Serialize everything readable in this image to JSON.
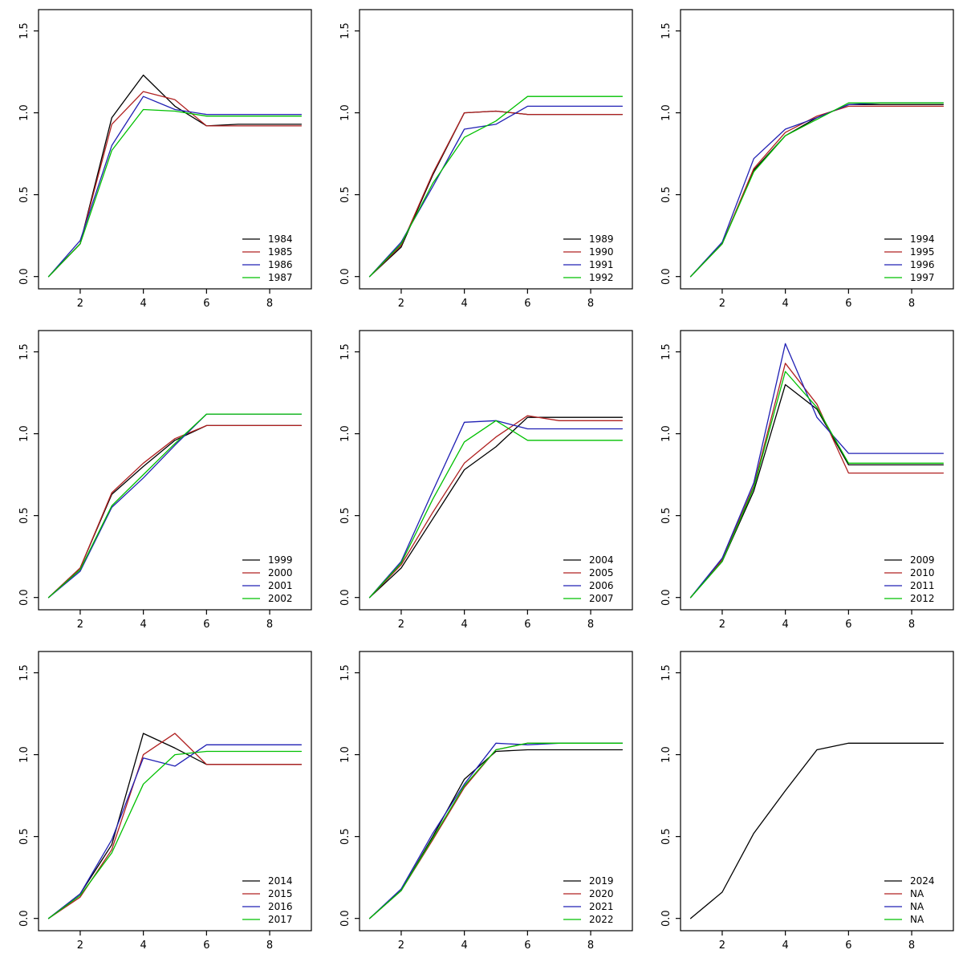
{
  "page": {
    "background": "#ffffff",
    "grid": "3x3 line chart panels"
  },
  "axis": {
    "xlim": [
      1,
      9
    ],
    "ylim": [
      0,
      1.55
    ],
    "x_ticks": [
      2,
      4,
      6,
      8
    ],
    "x_tick_labels": [
      "2",
      "4",
      "6",
      "8"
    ],
    "y_ticks": [
      0,
      0.5,
      1.0,
      1.5
    ],
    "y_tick_labels": [
      "0.0",
      "0.5",
      "1.0",
      "1.5"
    ],
    "grid_lines": false,
    "legend_position": "bottom-right"
  },
  "colors": {
    "series1": "#000000",
    "series2": "#b02020",
    "series3": "#2020b4",
    "series4": "#00c000"
  },
  "chart_data": [
    {
      "type": "line",
      "x": [
        1,
        2,
        3,
        4,
        5,
        6,
        7,
        8,
        9
      ],
      "series": [
        {
          "name": "1984",
          "color": "#000000",
          "values": [
            0,
            0.2,
            0.97,
            1.23,
            1.04,
            0.92,
            0.93,
            0.93,
            0.93
          ]
        },
        {
          "name": "1985",
          "color": "#b02020",
          "values": [
            0,
            0.2,
            0.93,
            1.13,
            1.08,
            0.92,
            0.92,
            0.92,
            0.92
          ]
        },
        {
          "name": "1986",
          "color": "#2020b4",
          "values": [
            0,
            0.22,
            0.8,
            1.1,
            1.02,
            0.99,
            0.99,
            0.99,
            0.99
          ]
        },
        {
          "name": "1987",
          "color": "#00c000",
          "values": [
            0,
            0.2,
            0.77,
            1.02,
            1.01,
            0.98,
            0.98,
            0.98,
            0.98
          ]
        }
      ]
    },
    {
      "type": "line",
      "x": [
        1,
        2,
        3,
        4,
        5,
        6,
        7,
        8,
        9
      ],
      "series": [
        {
          "name": "1989",
          "color": "#000000",
          "values": [
            0,
            0.18,
            0.62,
            1.0,
            1.01,
            0.99,
            0.99,
            0.99,
            0.99
          ]
        },
        {
          "name": "1990",
          "color": "#b02020",
          "values": [
            0,
            0.19,
            0.63,
            1.0,
            1.01,
            0.99,
            0.99,
            0.99,
            0.99
          ]
        },
        {
          "name": "1991",
          "color": "#2020b4",
          "values": [
            0,
            0.21,
            0.55,
            0.9,
            0.93,
            1.04,
            1.04,
            1.04,
            1.04
          ]
        },
        {
          "name": "1992",
          "color": "#00c000",
          "values": [
            0,
            0.2,
            0.57,
            0.85,
            0.95,
            1.1,
            1.1,
            1.1,
            1.1
          ]
        }
      ]
    },
    {
      "type": "line",
      "x": [
        1,
        2,
        3,
        4,
        5,
        6,
        7,
        8,
        9
      ],
      "series": [
        {
          "name": "1994",
          "color": "#000000",
          "values": [
            0,
            0.2,
            0.65,
            0.86,
            0.97,
            1.05,
            1.05,
            1.05,
            1.05
          ]
        },
        {
          "name": "1995",
          "color": "#b02020",
          "values": [
            0,
            0.2,
            0.66,
            0.88,
            0.98,
            1.04,
            1.04,
            1.04,
            1.04
          ]
        },
        {
          "name": "1996",
          "color": "#2020b4",
          "values": [
            0,
            0.21,
            0.72,
            0.9,
            0.97,
            1.05,
            1.06,
            1.06,
            1.06
          ]
        },
        {
          "name": "1997",
          "color": "#00c000",
          "values": [
            0,
            0.2,
            0.64,
            0.86,
            0.96,
            1.06,
            1.06,
            1.06,
            1.06
          ]
        }
      ]
    },
    {
      "type": "line",
      "x": [
        1,
        2,
        3,
        4,
        5,
        6,
        7,
        8,
        9
      ],
      "series": [
        {
          "name": "1999",
          "color": "#000000",
          "values": [
            0,
            0.18,
            0.63,
            0.8,
            0.96,
            1.05,
            1.05,
            1.05,
            1.05
          ]
        },
        {
          "name": "2000",
          "color": "#b02020",
          "values": [
            0,
            0.18,
            0.64,
            0.82,
            0.97,
            1.05,
            1.05,
            1.05,
            1.05
          ]
        },
        {
          "name": "2001",
          "color": "#2020b4",
          "values": [
            0,
            0.16,
            0.55,
            0.73,
            0.93,
            1.12,
            1.12,
            1.12,
            1.12
          ]
        },
        {
          "name": "2002",
          "color": "#00c000",
          "values": [
            0,
            0.17,
            0.56,
            0.75,
            0.94,
            1.12,
            1.12,
            1.12,
            1.12
          ]
        }
      ]
    },
    {
      "type": "line",
      "x": [
        1,
        2,
        3,
        4,
        5,
        6,
        7,
        8,
        9
      ],
      "series": [
        {
          "name": "2004",
          "color": "#000000",
          "values": [
            0,
            0.18,
            0.48,
            0.78,
            0.92,
            1.1,
            1.1,
            1.1,
            1.1
          ]
        },
        {
          "name": "2005",
          "color": "#b02020",
          "values": [
            0,
            0.2,
            0.52,
            0.82,
            0.98,
            1.11,
            1.08,
            1.08,
            1.08
          ]
        },
        {
          "name": "2006",
          "color": "#2020b4",
          "values": [
            0,
            0.22,
            0.65,
            1.07,
            1.08,
            1.03,
            1.03,
            1.03,
            1.03
          ]
        },
        {
          "name": "2007",
          "color": "#00c000",
          "values": [
            0,
            0.21,
            0.6,
            0.95,
            1.08,
            0.96,
            0.96,
            0.96,
            0.96
          ]
        }
      ]
    },
    {
      "type": "line",
      "x": [
        1,
        2,
        3,
        4,
        5,
        6,
        7,
        8,
        9
      ],
      "series": [
        {
          "name": "2009",
          "color": "#000000",
          "values": [
            0,
            0.22,
            0.65,
            1.3,
            1.15,
            0.81,
            0.81,
            0.81,
            0.81
          ]
        },
        {
          "name": "2010",
          "color": "#b02020",
          "values": [
            0,
            0.23,
            0.68,
            1.43,
            1.18,
            0.76,
            0.76,
            0.76,
            0.76
          ]
        },
        {
          "name": "2011",
          "color": "#2020b4",
          "values": [
            0,
            0.24,
            0.7,
            1.55,
            1.1,
            0.88,
            0.88,
            0.88,
            0.88
          ]
        },
        {
          "name": "2012",
          "color": "#00c000",
          "values": [
            0,
            0.22,
            0.67,
            1.38,
            1.16,
            0.82,
            0.82,
            0.82,
            0.82
          ]
        }
      ]
    },
    {
      "type": "line",
      "x": [
        1,
        2,
        3,
        4,
        5,
        6,
        7,
        8,
        9
      ],
      "series": [
        {
          "name": "2014",
          "color": "#000000",
          "values": [
            0,
            0.15,
            0.45,
            1.13,
            1.04,
            0.94,
            0.94,
            0.94,
            0.94
          ]
        },
        {
          "name": "2015",
          "color": "#b02020",
          "values": [
            0,
            0.13,
            0.42,
            1.0,
            1.13,
            0.94,
            0.94,
            0.94,
            0.94
          ]
        },
        {
          "name": "2016",
          "color": "#2020b4",
          "values": [
            0,
            0.15,
            0.48,
            0.98,
            0.93,
            1.06,
            1.06,
            1.06,
            1.06
          ]
        },
        {
          "name": "2017",
          "color": "#00c000",
          "values": [
            0,
            0.14,
            0.4,
            0.82,
            1.0,
            1.02,
            1.02,
            1.02,
            1.02
          ]
        }
      ]
    },
    {
      "type": "line",
      "x": [
        1,
        2,
        3,
        4,
        5,
        6,
        7,
        8,
        9
      ],
      "series": [
        {
          "name": "2019",
          "color": "#000000",
          "values": [
            0,
            0.17,
            0.5,
            0.85,
            1.02,
            1.03,
            1.03,
            1.03,
            1.03
          ]
        },
        {
          "name": "2020",
          "color": "#b02020",
          "values": [
            0,
            0.17,
            0.48,
            0.8,
            1.03,
            1.07,
            1.07,
            1.07,
            1.07
          ]
        },
        {
          "name": "2021",
          "color": "#2020b4",
          "values": [
            0,
            0.18,
            0.52,
            0.82,
            1.07,
            1.06,
            1.07,
            1.07,
            1.07
          ]
        },
        {
          "name": "2022",
          "color": "#00c000",
          "values": [
            0,
            0.17,
            0.49,
            0.81,
            1.03,
            1.07,
            1.07,
            1.07,
            1.07
          ]
        }
      ]
    },
    {
      "type": "line",
      "x": [
        1,
        2,
        3,
        4,
        5,
        6,
        7,
        8,
        9
      ],
      "series": [
        {
          "name": "2024",
          "color": "#000000",
          "values": [
            0,
            0.16,
            0.52,
            0.78,
            1.03,
            1.07,
            1.07,
            1.07,
            1.07
          ]
        },
        {
          "name": "NA",
          "color": "#b02020",
          "values": []
        },
        {
          "name": "NA",
          "color": "#2020b4",
          "values": []
        },
        {
          "name": "NA",
          "color": "#00c000",
          "values": []
        }
      ]
    }
  ]
}
